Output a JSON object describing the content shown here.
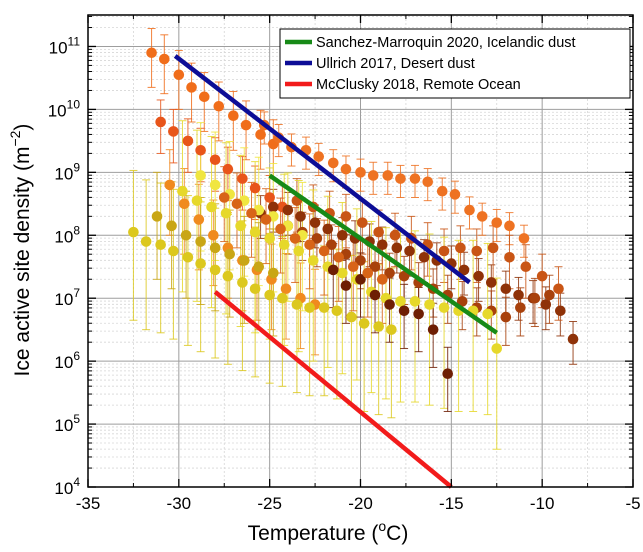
{
  "chart_data": {
    "type": "scatter",
    "xlabel_main": "Temperature (",
    "xlabel_sup": "o",
    "xlabel_end": "C)",
    "ylabel_main": "Ice active site density (m",
    "ylabel_sup": "−2",
    "ylabel_end": ")",
    "xlim": [
      -35,
      -5
    ],
    "ylim_log10": [
      4,
      11.5
    ],
    "y_scale": "log",
    "grid": true,
    "x_ticks": [
      {
        "value": -35,
        "label": "-35"
      },
      {
        "value": -30,
        "label": "-30"
      },
      {
        "value": -25,
        "label": "-25"
      },
      {
        "value": -20,
        "label": "-20"
      },
      {
        "value": -15,
        "label": "-15"
      },
      {
        "value": -10,
        "label": "-10"
      },
      {
        "value": -5,
        "label": "-5"
      }
    ],
    "y_ticks": [
      {
        "exp": 4,
        "base": "10",
        "sup": "4"
      },
      {
        "exp": 5,
        "base": "10",
        "sup": "5"
      },
      {
        "exp": 6,
        "base": "10",
        "sup": "6"
      },
      {
        "exp": 7,
        "base": "10",
        "sup": "7"
      },
      {
        "exp": 8,
        "base": "10",
        "sup": "8"
      },
      {
        "exp": 9,
        "base": "10",
        "sup": "9"
      },
      {
        "exp": 10,
        "base": "10",
        "sup": "10"
      },
      {
        "exp": 11,
        "base": "10",
        "sup": "11"
      }
    ],
    "legend_position": "top-right",
    "lines": [
      {
        "name": "Sanchez-Marroquin 2020, Icelandic dust",
        "color": "#178a17",
        "x": [
          -25.0,
          -12.5
        ],
        "log10_y": [
          8.95,
          6.45
        ]
      },
      {
        "name": "Ullrich 2017, Desert dust",
        "color": "#0d0d96",
        "x": [
          -30.2,
          -14.0
        ],
        "log10_y": [
          10.85,
          7.25
        ]
      },
      {
        "name": "McClusky 2018, Remote Ocean",
        "color": "#f21b1b",
        "x": [
          -28.0,
          -15.0
        ],
        "log10_y": [
          7.1,
          4.0
        ]
      }
    ],
    "series": [
      {
        "color": "#f06d1a",
        "error": 0.55,
        "points": [
          [
            -31.5,
            10.9
          ],
          [
            -30.8,
            10.8
          ],
          [
            -30,
            10.55
          ],
          [
            -29.3,
            10.35
          ],
          [
            -28.6,
            10.2
          ],
          [
            -27.8,
            10.05
          ],
          [
            -27,
            9.9
          ],
          [
            -26.3,
            9.75
          ],
          [
            -25.5,
            9.6
          ],
          [
            -24.8,
            9.45
          ]
        ]
      },
      {
        "color": "#e8551a",
        "error": 0.5,
        "points": [
          [
            -31,
            9.8
          ],
          [
            -30.3,
            9.65
          ],
          [
            -29.5,
            9.5
          ],
          [
            -28.8,
            9.35
          ],
          [
            -28,
            9.2
          ],
          [
            -27.3,
            9.05
          ],
          [
            -26.5,
            8.9
          ],
          [
            -25.8,
            8.75
          ],
          [
            -25,
            8.6
          ],
          [
            -24.3,
            8.45
          ]
        ]
      },
      {
        "color": "#ee7222",
        "error": 0.3,
        "points": [
          [
            -25.3,
            9.75
          ],
          [
            -24.5,
            9.55
          ],
          [
            -23.8,
            9.4
          ],
          [
            -23,
            9.35
          ],
          [
            -22.3,
            9.25
          ],
          [
            -21.5,
            9.15
          ],
          [
            -20.8,
            9.05
          ],
          [
            -20,
            9.0
          ],
          [
            -19.3,
            8.95
          ],
          [
            -18.5,
            8.95
          ],
          [
            -17.8,
            8.9
          ],
          [
            -17,
            8.9
          ],
          [
            -16.3,
            8.85
          ],
          [
            -15.5,
            8.7
          ],
          [
            -14.8,
            8.65
          ],
          [
            -14,
            8.4
          ],
          [
            -13.3,
            8.3
          ],
          [
            -12.5,
            8.2
          ],
          [
            -11.8,
            8.15
          ],
          [
            -11,
            7.95
          ]
        ]
      },
      {
        "color": "#8f3208",
        "error": 0.4,
        "points": [
          [
            -25.5,
            8.35
          ],
          [
            -24.8,
            8.45
          ],
          [
            -24,
            8.4
          ],
          [
            -23.3,
            8.3
          ],
          [
            -22.5,
            8.2
          ],
          [
            -21.8,
            8.1
          ],
          [
            -21,
            8.0
          ],
          [
            -20.3,
            7.95
          ],
          [
            -19.5,
            7.9
          ],
          [
            -18.8,
            7.85
          ],
          [
            -18,
            7.8
          ],
          [
            -17.3,
            7.75
          ],
          [
            -16.5,
            7.65
          ],
          [
            -15.8,
            7.6
          ],
          [
            -15,
            7.55
          ],
          [
            -14.3,
            7.45
          ],
          [
            -13.5,
            7.35
          ],
          [
            -12.8,
            7.25
          ],
          [
            -12,
            7.15
          ],
          [
            -11.3,
            7.05
          ],
          [
            -10.5,
            7.0
          ],
          [
            -9.8,
            6.9
          ],
          [
            -9,
            6.8
          ],
          [
            -8.3,
            6.35
          ]
        ]
      },
      {
        "color": "#a8410c",
        "error": 0.45,
        "points": [
          [
            -24,
            8.15
          ],
          [
            -23.2,
            8.05
          ],
          [
            -22.4,
            7.95
          ],
          [
            -21.6,
            7.85
          ],
          [
            -20.8,
            7.7
          ],
          [
            -20,
            7.6
          ],
          [
            -19.2,
            7.5
          ],
          [
            -18.4,
            7.4
          ],
          [
            -17.6,
            7.35
          ],
          [
            -16.8,
            7.25
          ],
          [
            -16,
            7.15
          ],
          [
            -15.2,
            7.05
          ],
          [
            -14.4,
            6.95
          ],
          [
            -13.6,
            6.85
          ],
          [
            -12.8,
            6.8
          ],
          [
            -12,
            6.7
          ],
          [
            -11.2,
            6.85
          ],
          [
            -10.4,
            7.0
          ],
          [
            -9.6,
            7.05
          ]
        ]
      },
      {
        "color": "#c95515",
        "error": 0.5,
        "points": [
          [
            -23.5,
            8.55
          ],
          [
            -22.6,
            8.45
          ],
          [
            -21.7,
            8.35
          ],
          [
            -20.8,
            8.3
          ],
          [
            -19.9,
            8.2
          ],
          [
            -19,
            8.05
          ],
          [
            -18.1,
            8.0
          ],
          [
            -17.2,
            7.95
          ],
          [
            -16.3,
            7.85
          ],
          [
            -15.4,
            7.75
          ],
          [
            -14.5,
            7.8
          ],
          [
            -13.6,
            7.75
          ],
          [
            -12.7,
            7.8
          ],
          [
            -11.8,
            7.65
          ],
          [
            -10.9,
            7.5
          ],
          [
            -10,
            7.35
          ],
          [
            -9.1,
            7.15
          ]
        ]
      },
      {
        "color": "#f08a1e",
        "error": 0.8,
        "points": [
          [
            -30.5,
            8.8
          ],
          [
            -29.7,
            8.5
          ],
          [
            -28.9,
            8.25
          ],
          [
            -28.1,
            8.0
          ],
          [
            -27.3,
            7.8
          ],
          [
            -26.5,
            7.6
          ],
          [
            -25.7,
            7.45
          ],
          [
            -24.9,
            7.3
          ],
          [
            -24.1,
            7.15
          ],
          [
            -23.3,
            7.0
          ],
          [
            -22.5,
            6.9
          ]
        ]
      },
      {
        "color": "#dcc81e",
        "error": 1.4,
        "points": [
          [
            -32.5,
            8.05
          ],
          [
            -31.8,
            7.9
          ],
          [
            -31,
            7.85
          ],
          [
            -30.3,
            7.75
          ],
          [
            -29.5,
            7.65
          ],
          [
            -28.8,
            7.55
          ],
          [
            -28,
            7.45
          ],
          [
            -27.3,
            7.35
          ],
          [
            -26.5,
            7.25
          ],
          [
            -25.8,
            7.15
          ],
          [
            -25,
            7.05
          ],
          [
            -24.3,
            7.0
          ],
          [
            -23.5,
            6.9
          ],
          [
            -22.8,
            6.85
          ],
          [
            -22,
            6.85
          ],
          [
            -21.3,
            6.8
          ],
          [
            -20.5,
            6.7
          ],
          [
            -19.8,
            6.6
          ],
          [
            -19,
            6.55
          ],
          [
            -18.3,
            6.5
          ]
        ]
      },
      {
        "color": "#e6d82a",
        "error": 1.6,
        "points": [
          [
            -29.8,
            8.7
          ],
          [
            -29,
            8.55
          ],
          [
            -28.2,
            8.45
          ],
          [
            -27.4,
            8.35
          ],
          [
            -26.6,
            8.15
          ],
          [
            -25.8,
            8.05
          ],
          [
            -25,
            7.95
          ],
          [
            -24.2,
            7.85
          ],
          [
            -23.4,
            7.75
          ],
          [
            -22.6,
            7.6
          ],
          [
            -21.8,
            7.5
          ],
          [
            -21,
            7.4
          ],
          [
            -20.2,
            7.3
          ],
          [
            -19.4,
            7.1
          ],
          [
            -18.6,
            7.0
          ],
          [
            -17.8,
            6.95
          ],
          [
            -17,
            6.95
          ],
          [
            -16.2,
            6.9
          ],
          [
            -15.4,
            6.85
          ],
          [
            -14.6,
            6.8
          ],
          [
            -13.8,
            6.8
          ],
          [
            -13,
            6.75
          ],
          [
            -12.5,
            6.2
          ]
        ]
      },
      {
        "color": "#f0e640",
        "error": 1.2,
        "points": [
          [
            -28.8,
            8.95
          ],
          [
            -28,
            8.8
          ],
          [
            -27.2,
            8.65
          ],
          [
            -26.4,
            8.55
          ],
          [
            -25.6,
            8.4
          ],
          [
            -24.8,
            8.3
          ],
          [
            -24,
            8.15
          ],
          [
            -23.2,
            8.0
          ]
        ]
      },
      {
        "color": "#c9a615",
        "error": 1.0,
        "points": [
          [
            -31.2,
            8.3
          ],
          [
            -30.4,
            8.15
          ],
          [
            -29.6,
            8.0
          ],
          [
            -28.8,
            7.9
          ],
          [
            -28,
            7.8
          ],
          [
            -27.2,
            7.7
          ],
          [
            -26.4,
            7.6
          ],
          [
            -25.6,
            7.5
          ],
          [
            -24.8,
            7.4
          ]
        ]
      },
      {
        "color": "#6e1e04",
        "error": 0.6,
        "points": [
          [
            -21.5,
            7.45
          ],
          [
            -20.8,
            7.2
          ],
          [
            -20,
            7.3
          ],
          [
            -19.2,
            7.05
          ],
          [
            -18.4,
            6.9
          ],
          [
            -17.6,
            6.8
          ],
          [
            -16.8,
            6.75
          ],
          [
            -16,
            6.5
          ],
          [
            -15.2,
            5.8
          ]
        ]
      },
      {
        "color": "#d86418",
        "error": 0.7,
        "points": [
          [
            -27.5,
            8.6
          ],
          [
            -26.8,
            8.5
          ],
          [
            -26,
            8.35
          ],
          [
            -25.2,
            8.25
          ],
          [
            -24.4,
            8.1
          ],
          [
            -23.6,
            7.95
          ],
          [
            -22.8,
            7.85
          ],
          [
            -22,
            7.75
          ],
          [
            -21.2,
            7.65
          ],
          [
            -20.4,
            7.5
          ],
          [
            -19.6,
            7.4
          ],
          [
            -18.8,
            7.3
          ]
        ]
      }
    ]
  }
}
